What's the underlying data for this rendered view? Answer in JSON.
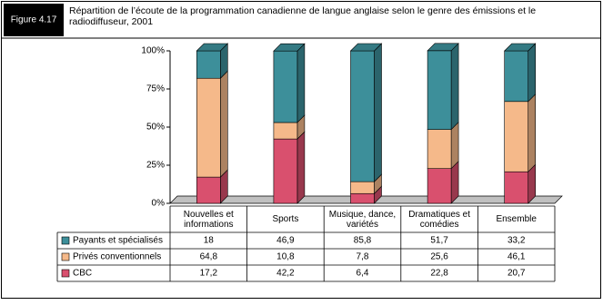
{
  "chart_data": {
    "type": "stacked-bar-3d",
    "figure_label": "Figure 4.17",
    "title": "Répartition de l’écoute de la programmation canadienne de langue anglaise selon le genre des émissions et le radiodiffuseur, 2001",
    "categories": [
      "Nouvelles et informations",
      "Sports",
      "Musique, dance, variétés",
      "Dramatiques et comédies",
      "Ensemble"
    ],
    "series": [
      {
        "name": "CBC",
        "color": "#d9506e",
        "values": [
          17.2,
          42.2,
          6.4,
          22.8,
          20.7
        ],
        "value_labels": [
          "17,2",
          "42,2",
          "6,4",
          "22,8",
          "20,7"
        ]
      },
      {
        "name": "Privés conventionnels",
        "color": "#f5b98a",
        "values": [
          64.8,
          10.8,
          7.8,
          25.6,
          46.1
        ],
        "value_labels": [
          "64,8",
          "10,8",
          "7,8",
          "25,6",
          "46,1"
        ]
      },
      {
        "name": "Payants et spécialisés",
        "color": "#3d8f9a",
        "values": [
          18,
          46.9,
          85.8,
          51.7,
          33.2
        ],
        "value_labels": [
          "18",
          "46,9",
          "85,8",
          "51,7",
          "33,2"
        ]
      }
    ],
    "ylim": [
      0,
      100
    ],
    "yticks": [
      {
        "value": 0,
        "label": "0%"
      },
      {
        "value": 25,
        "label": "25%"
      },
      {
        "value": 50,
        "label": "50%"
      },
      {
        "value": 75,
        "label": "75%"
      },
      {
        "value": 100,
        "label": "100%"
      }
    ]
  }
}
